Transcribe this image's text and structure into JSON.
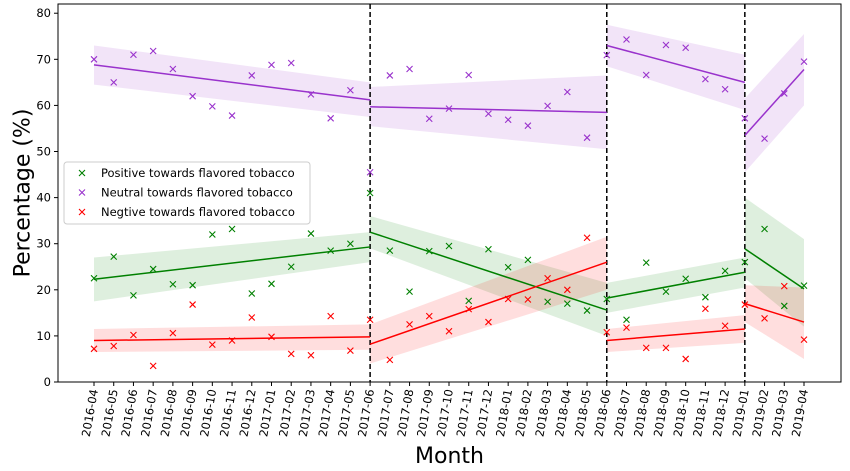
{
  "chart_data": {
    "type": "scatter",
    "xlabel": "Month",
    "ylabel": "Percentage (%)",
    "ylim": [
      0,
      82
    ],
    "yticks": [
      0,
      10,
      20,
      30,
      40,
      50,
      60,
      70,
      80
    ],
    "categories": [
      "2016-04",
      "2016-05",
      "2016-06",
      "2016-07",
      "2016-08",
      "2016-09",
      "2016-10",
      "2016-11",
      "2016-12",
      "2017-01",
      "2017-02",
      "2017-03",
      "2017-04",
      "2017-05",
      "2017-06",
      "2017-07",
      "2017-08",
      "2017-09",
      "2017-10",
      "2017-11",
      "2017-12",
      "2018-01",
      "2018-02",
      "2018-03",
      "2018-04",
      "2018-05",
      "2018-06",
      "2018-07",
      "2018-08",
      "2018-09",
      "2018-10",
      "2018-11",
      "2018-12",
      "2019-01",
      "2019-02",
      "2019-03",
      "2019-04"
    ],
    "breakpoints": [
      "2017-06",
      "2018-06",
      "2019-01"
    ],
    "legend_position": "center-left",
    "grid": false,
    "series": [
      {
        "name": "Positive towards flavored tobacco",
        "color": "#008000",
        "marker": "x",
        "values": [
          22.5,
          27.2,
          18.8,
          24.5,
          21.2,
          21.0,
          32.0,
          33.2,
          19.2,
          21.3,
          25.0,
          32.2,
          28.5,
          30.0,
          41.0,
          28.5,
          19.6,
          28.4,
          29.5,
          17.6,
          28.8,
          24.9,
          26.5,
          17.4,
          17.0,
          15.5,
          18.0,
          13.5,
          25.9,
          19.6,
          22.4,
          18.4,
          24.1,
          26.0,
          33.2,
          16.5,
          20.9
        ],
        "trend_segments": [
          {
            "from": "2016-04",
            "to": "2017-06",
            "y_start": 22.3,
            "y_end": 29.3,
            "ci_start": [
              17.5,
              27.0
            ],
            "ci_end": [
              26.0,
              32.5
            ]
          },
          {
            "from": "2017-06",
            "to": "2018-06",
            "y_start": 32.5,
            "y_end": 15.6,
            "ci_start": [
              29.0,
              36.0
            ],
            "ci_end": [
              10.0,
              21.5
            ]
          },
          {
            "from": "2018-06",
            "to": "2019-01",
            "y_start": 18.2,
            "y_end": 23.8,
            "ci_start": [
              15.0,
              21.5
            ],
            "ci_end": [
              20.5,
              27.0
            ]
          },
          {
            "from": "2019-01",
            "to": "2019-04",
            "y_start": 28.9,
            "y_end": 20.2,
            "ci_start": [
              22.5,
              40.0
            ],
            "ci_end": [
              12.0,
              31.0
            ]
          }
        ]
      },
      {
        "name": "Neutral towards flavored tobacco",
        "color": "#9932cc",
        "marker": "x",
        "values": [
          70.0,
          65.0,
          71.0,
          71.8,
          67.9,
          62.0,
          59.8,
          57.8,
          66.5,
          68.8,
          69.2,
          62.4,
          57.2,
          63.3,
          45.5,
          66.5,
          67.9,
          57.1,
          59.3,
          66.6,
          58.2,
          56.9,
          55.6,
          59.9,
          62.9,
          53.0,
          70.9,
          74.3,
          66.6,
          73.1,
          72.5,
          65.7,
          63.5,
          57.2,
          52.8,
          62.6,
          69.5
        ],
        "trend_segments": [
          {
            "from": "2016-04",
            "to": "2017-06",
            "y_start": 68.8,
            "y_end": 61.2,
            "ci_start": [
              64.5,
              73.0
            ],
            "ci_end": [
              57.5,
              65.0
            ]
          },
          {
            "from": "2017-06",
            "to": "2018-06",
            "y_start": 59.7,
            "y_end": 58.5,
            "ci_start": [
              55.5,
              64.0
            ],
            "ci_end": [
              50.5,
              66.5
            ]
          },
          {
            "from": "2018-06",
            "to": "2019-01",
            "y_start": 73.0,
            "y_end": 65.0,
            "ci_start": [
              68.5,
              77.5
            ],
            "ci_end": [
              59.0,
              71.0
            ]
          },
          {
            "from": "2019-01",
            "to": "2019-04",
            "y_start": 53.5,
            "y_end": 67.8,
            "ci_start": [
              45.5,
              61.5
            ],
            "ci_end": [
              60.0,
              75.5
            ]
          }
        ]
      },
      {
        "name": "Negtive towards flavored tobacco",
        "color": "#ff0000",
        "marker": "x",
        "values": [
          7.2,
          7.8,
          10.2,
          3.5,
          10.6,
          16.8,
          8.1,
          9.0,
          14.0,
          9.8,
          6.1,
          5.8,
          14.3,
          6.8,
          13.5,
          4.8,
          12.5,
          14.3,
          11.0,
          15.8,
          13.0,
          18.0,
          17.9,
          22.5,
          20.0,
          31.3,
          10.8,
          11.8,
          7.4,
          7.4,
          5.0,
          15.9,
          12.2,
          16.8,
          13.8,
          20.8,
          9.2
        ],
        "trend_segments": [
          {
            "from": "2016-04",
            "to": "2017-06",
            "y_start": 9.0,
            "y_end": 9.8,
            "ci_start": [
              6.5,
              11.5
            ],
            "ci_end": [
              7.0,
              12.5
            ]
          },
          {
            "from": "2017-06",
            "to": "2018-06",
            "y_start": 8.2,
            "y_end": 26.0,
            "ci_start": [
              4.0,
              12.5
            ],
            "ci_end": [
              20.0,
              31.5
            ]
          },
          {
            "from": "2018-06",
            "to": "2019-01",
            "y_start": 9.0,
            "y_end": 11.5,
            "ci_start": [
              6.5,
              11.5
            ],
            "ci_end": [
              8.5,
              14.5
            ]
          },
          {
            "from": "2019-01",
            "to": "2019-04",
            "y_start": 17.0,
            "y_end": 13.0,
            "ci_start": [
              13.0,
              21.0
            ],
            "ci_end": [
              5.0,
              20.5
            ]
          }
        ]
      }
    ]
  }
}
